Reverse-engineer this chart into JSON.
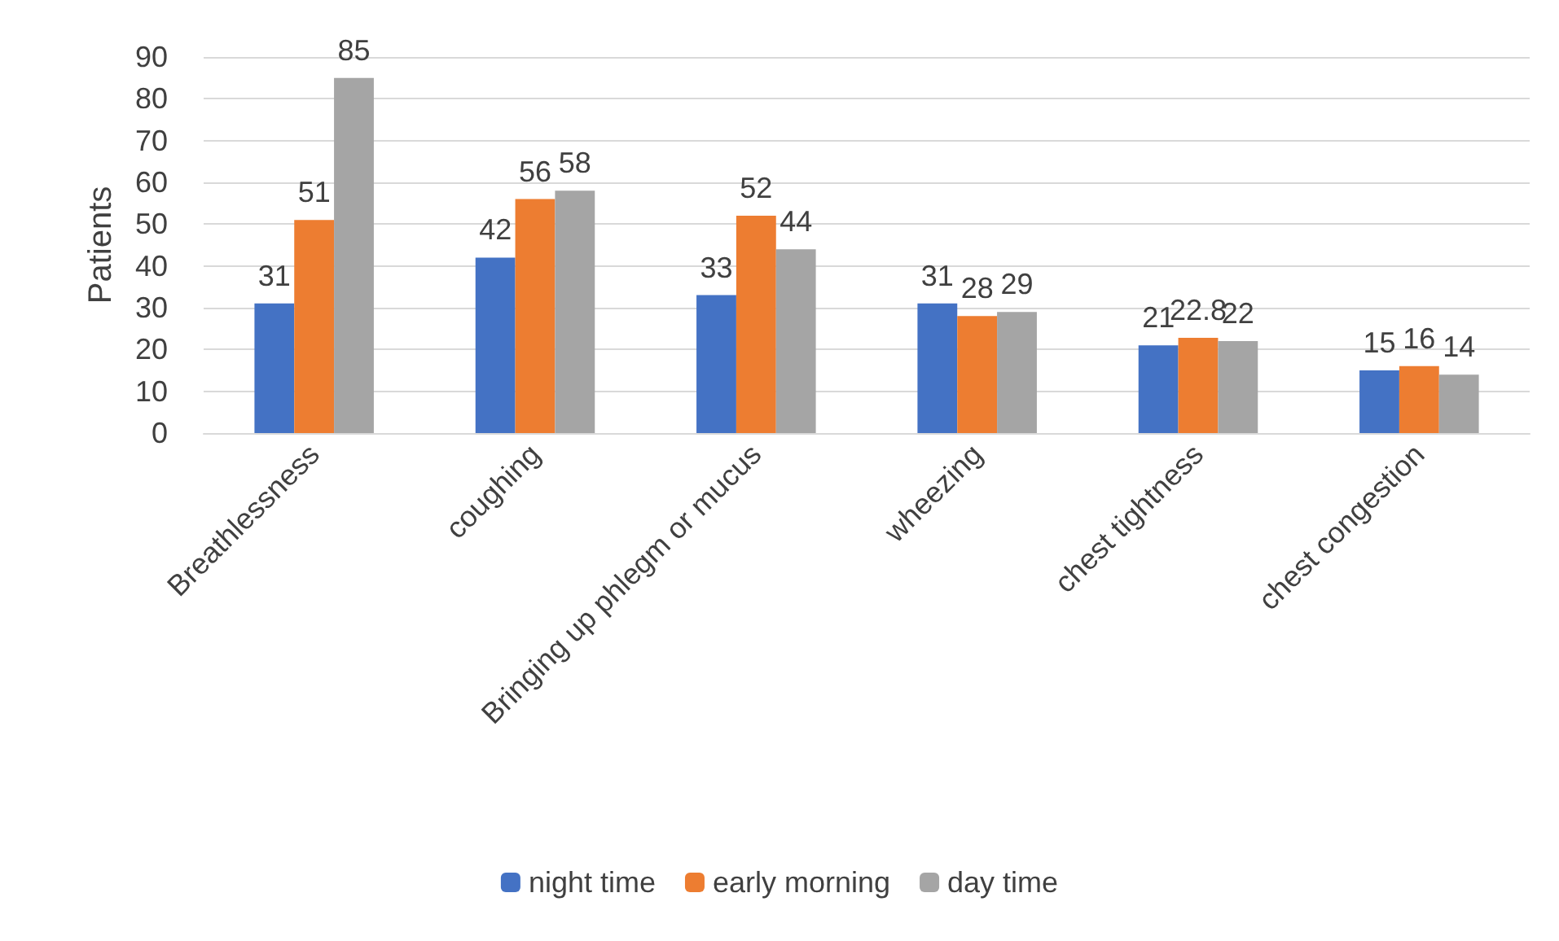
{
  "chart_data": {
    "type": "bar",
    "ylabel": "Patients",
    "categories": [
      "Breathlessness",
      "coughing",
      "Bringing up phlegm or mucus",
      "wheezing",
      "chest tightness",
      "chest congestion"
    ],
    "series": [
      {
        "name": "night time",
        "color": "#4472c4",
        "values": [
          31,
          42,
          33,
          31,
          21,
          15
        ]
      },
      {
        "name": "early morning",
        "color": "#ed7d31",
        "values": [
          51,
          56,
          52,
          28,
          22.8,
          16
        ]
      },
      {
        "name": "day time",
        "color": "#a5a5a5",
        "values": [
          85,
          58,
          44,
          29,
          22,
          14
        ]
      }
    ],
    "ylim": [
      0,
      90
    ],
    "yticks": [
      0,
      10,
      20,
      30,
      40,
      50,
      60,
      70,
      80,
      90
    ],
    "grid": "y",
    "legend": "bottom",
    "data_labels": true
  }
}
